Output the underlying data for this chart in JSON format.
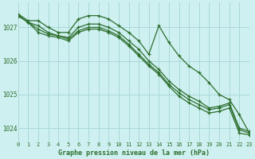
{
  "background_color": "#cef0f0",
  "grid_color": "#aad8d8",
  "line_color": "#2d6e2d",
  "title": "Graphe pression niveau de la mer (hPa)",
  "xlim": [
    0,
    23
  ],
  "ylim": [
    1023.6,
    1027.75
  ],
  "yticks": [
    1024,
    1025,
    1026,
    1027
  ],
  "xticks": [
    0,
    1,
    2,
    3,
    4,
    5,
    6,
    7,
    8,
    9,
    10,
    11,
    12,
    13,
    14,
    15,
    16,
    17,
    18,
    19,
    20,
    21,
    22,
    23
  ],
  "series": [
    [
      1027.4,
      1027.2,
      1027.2,
      1027.0,
      1026.85,
      1026.85,
      1027.25,
      1027.35,
      1027.35,
      1027.25,
      1027.05,
      1026.85,
      1026.6,
      1026.2,
      1027.05,
      1026.55,
      1026.15,
      1025.85,
      1025.65,
      1025.35,
      1025.0,
      1024.85,
      1024.4,
      1023.85
    ],
    [
      1027.35,
      1027.15,
      1027.05,
      1026.85,
      1026.75,
      1026.7,
      1027.0,
      1027.1,
      1027.1,
      1027.0,
      1026.85,
      1026.6,
      1026.35,
      1026.0,
      1025.75,
      1025.4,
      1025.15,
      1024.95,
      1024.8,
      1024.6,
      1024.65,
      1024.75,
      1024.0,
      1023.9
    ],
    [
      1027.35,
      1027.15,
      1026.85,
      1026.75,
      1026.7,
      1026.6,
      1026.85,
      1026.95,
      1026.95,
      1026.85,
      1026.7,
      1026.45,
      1026.15,
      1025.85,
      1025.6,
      1025.25,
      1024.95,
      1024.75,
      1024.6,
      1024.45,
      1024.5,
      1024.6,
      1023.85,
      1023.8
    ],
    [
      1027.35,
      1027.15,
      1026.95,
      1026.8,
      1026.75,
      1026.65,
      1026.9,
      1027.0,
      1027.0,
      1026.9,
      1026.75,
      1026.5,
      1026.2,
      1025.9,
      1025.65,
      1025.3,
      1025.05,
      1024.85,
      1024.7,
      1024.55,
      1024.6,
      1024.7,
      1023.95,
      1023.85
    ]
  ]
}
